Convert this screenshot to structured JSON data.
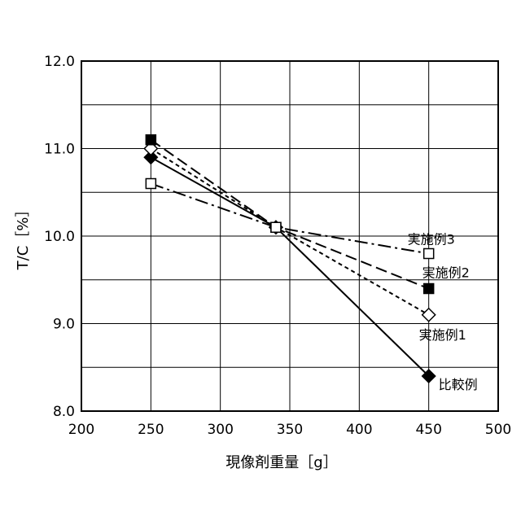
{
  "chart_data": {
    "type": "line",
    "xlabel": "現像剤重量［g］",
    "ylabel": "T/C［%］",
    "xlim": [
      200,
      500
    ],
    "ylim": [
      8.0,
      12.0
    ],
    "xticks": [
      "200",
      "250",
      "300",
      "350",
      "400",
      "450",
      "500"
    ],
    "yticks": [
      "8.0",
      "9.0",
      "10.0",
      "11.0",
      "12.0"
    ],
    "grid": true,
    "series": [
      {
        "name": "比較例",
        "x": [
          250,
          340,
          450
        ],
        "y": [
          10.9,
          10.1,
          8.4
        ],
        "marker": "filled-diamond",
        "line_style": "solid"
      },
      {
        "name": "実施例1",
        "x": [
          250,
          340,
          450
        ],
        "y": [
          11.0,
          10.1,
          9.1
        ],
        "marker": "open-diamond",
        "line_style": "short-dash"
      },
      {
        "name": "実施例2",
        "x": [
          250,
          340,
          450
        ],
        "y": [
          11.1,
          10.1,
          9.4
        ],
        "marker": "filled-square",
        "line_style": "long-dash"
      },
      {
        "name": "実施例3",
        "x": [
          250,
          340,
          450
        ],
        "y": [
          10.6,
          10.1,
          9.8
        ],
        "marker": "open-square",
        "line_style": "dash-dot"
      }
    ]
  }
}
